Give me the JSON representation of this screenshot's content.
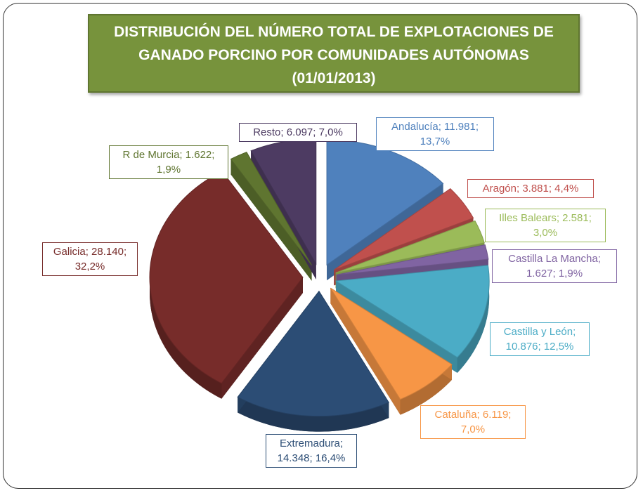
{
  "chart_data": {
    "type": "pie",
    "title": "DISTRIBUCIÓN DEL NÚMERO TOTAL DE EXPLOTACIONES DE GANADO PORCINO POR COMUNIDADES AUTÓNOMAS (01/01/2013)",
    "values": [
      11981,
      3881,
      2581,
      1627,
      10876,
      6119,
      14348,
      28140,
      1622,
      6097
    ],
    "percents": [
      13.7,
      4.4,
      3.0,
      1.9,
      12.5,
      7.0,
      16.4,
      32.2,
      1.9,
      7.0
    ],
    "value_labels": [
      "Andalucía; 11.981; 13,7%",
      "Aragón; 3.881; 4,4%",
      "Illes Balears; 2.581; 3,0%",
      "Castilla La Mancha; 1.627; 1,9%",
      "Castilla  y León; 10.876; 12,5%",
      "Cataluña; 6.119; 7,0%",
      "Extremadura; 14.348; 16,4%",
      "Galicia; 28.140; 32,2%",
      "R de Murcia; 1.622; 1,9%",
      "Resto; 6.097; 7,0%"
    ],
    "colors": [
      "#4f81bd",
      "#c0504d",
      "#9bbb59",
      "#8064a2",
      "#4bacc6",
      "#f79646",
      "#2c4d75",
      "#772c2a",
      "#5f7530",
      "#4d3b62"
    ]
  }
}
